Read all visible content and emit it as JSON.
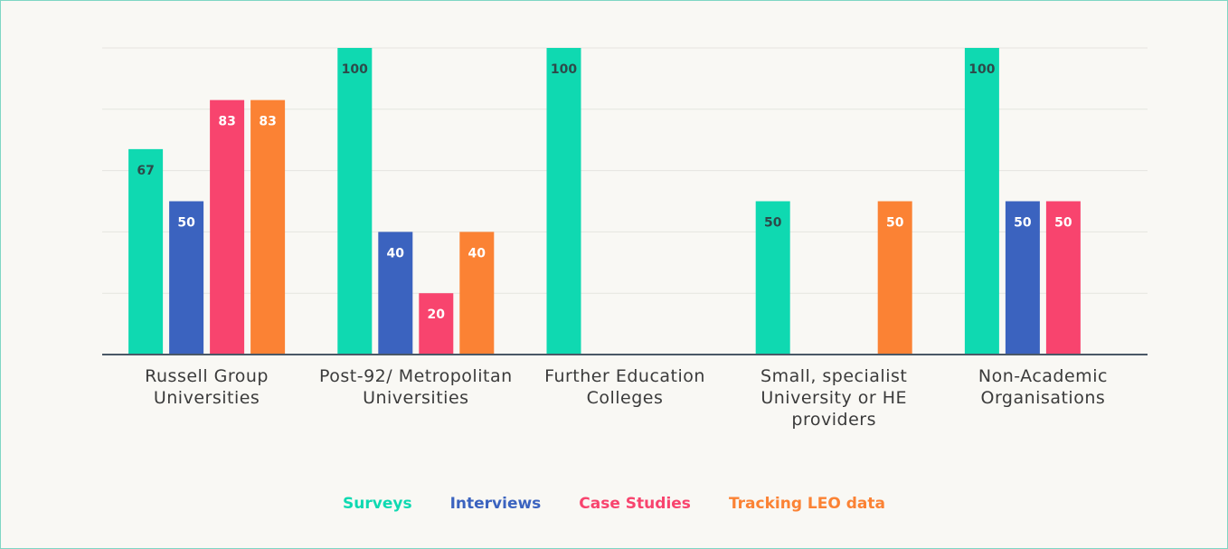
{
  "chart_data": {
    "type": "bar",
    "categories": [
      "Russell Group Universities",
      "Post-92/ Metropolitan Universities",
      "Further Education Colleges",
      "Small, specialist University or HE providers",
      "Non-Academic Organisations"
    ],
    "series": [
      {
        "name": "Surveys",
        "color": "#0fd9b1",
        "values": [
          67,
          100,
          100,
          50,
          100
        ]
      },
      {
        "name": "Interviews",
        "color": "#3b63bf",
        "values": [
          50,
          40,
          null,
          null,
          50
        ]
      },
      {
        "name": "Case Studies",
        "color": "#f8446e",
        "values": [
          83,
          20,
          null,
          null,
          50
        ]
      },
      {
        "name": "Tracking LEO data",
        "color": "#fb8234",
        "values": [
          83,
          40,
          null,
          50,
          null
        ]
      }
    ],
    "ylim": [
      0,
      100
    ],
    "yticks": [
      0,
      20,
      40,
      60,
      80,
      100
    ],
    "grid": true,
    "legend": "bottom"
  }
}
